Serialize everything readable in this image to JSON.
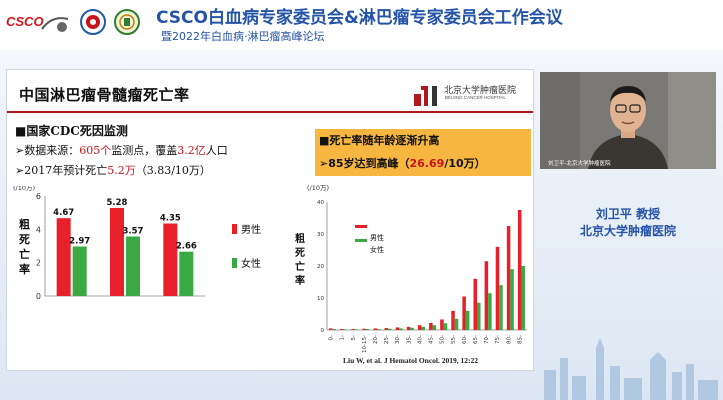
{
  "header": {
    "logo_text": "CSCO",
    "title": "CSCO白血病专家委员会&淋巴瘤专家委员会工作会议",
    "subtitle": "暨2022年白血病·淋巴瘤高峰论坛"
  },
  "slide": {
    "title": "中国淋巴瘤骨髓瘤死亡率",
    "hospital_name": "北京大学肿瘤医院",
    "hospital_name_en": "BEIJING CANCER HOSPITAL",
    "left": {
      "heading": "■国家CDC死因监测",
      "line1_pre": "➢数据来源：",
      "line1_red1": "605个",
      "line1_mid": "监测点，覆盖",
      "line1_red2": "3.2亿",
      "line1_post": "人口",
      "line2_pre": "➢2017年预计死亡",
      "line2_red": "5.2万",
      "line2_post": "（3.83/10万）"
    },
    "right": {
      "heading": "■死亡率随年龄逐渐升高",
      "line_pre": "➢85岁达到高峰（",
      "line_red": "26.69",
      "line_post": "/10万）"
    },
    "citation": "Liu W, et al. J Hematol Oncol. 2019, 12:22"
  },
  "colors": {
    "male": "#e8202a",
    "female": "#3aa843",
    "title_blue": "#2453a9",
    "accent_red": "#b1181e",
    "box_orange": "#f7b640"
  },
  "chart_data": [
    {
      "type": "bar",
      "unit_label": "(/10万)",
      "ylabel": "粗死亡率",
      "ylim": [
        0,
        6
      ],
      "yticks": [
        "0",
        "2",
        "4",
        "6"
      ],
      "categories": [
        "合计",
        "城市",
        "农村"
      ],
      "series": [
        {
          "name": "男性",
          "values": [
            4.67,
            5.28,
            4.35
          ]
        },
        {
          "name": "女性",
          "values": [
            2.97,
            3.57,
            2.66
          ]
        }
      ],
      "data_labels": [
        [
          "4.67",
          "5.28",
          "4.35"
        ],
        [
          "2.97",
          "3.57",
          "2.66"
        ]
      ],
      "legend": "right"
    },
    {
      "type": "bar",
      "unit_label": "(/10万)",
      "ylabel": "粗死亡率",
      "ylim": [
        0,
        40
      ],
      "yticks": [
        "0",
        "10",
        "20",
        "30",
        "40"
      ],
      "categories": [
        "0-",
        "1-",
        "5-",
        "10-15-",
        "20-",
        "25-",
        "30-",
        "35-",
        "40-",
        "45-",
        "50-",
        "55-",
        "60-",
        "65-",
        "70-",
        "75-",
        "80-",
        "85-"
      ],
      "series": [
        {
          "name": "男性",
          "values": [
            0.5,
            0.3,
            0.3,
            0.4,
            0.5,
            0.6,
            0.8,
            1.0,
            1.5,
            2.2,
            3.3,
            6.0,
            10.5,
            16.0,
            21.5,
            26.0,
            32.5,
            37.5
          ]
        },
        {
          "name": "女性",
          "values": [
            0.3,
            0.2,
            0.2,
            0.3,
            0.3,
            0.4,
            0.5,
            0.7,
            1.0,
            1.5,
            2.1,
            3.5,
            6.0,
            8.5,
            11.5,
            14.0,
            19.0,
            20.0
          ]
        }
      ],
      "legend": "top-left"
    }
  ],
  "video": {
    "label": "刘卫平-北京大学肿瘤医院"
  },
  "speaker": {
    "name": "刘卫平   教授",
    "organization": "北京大学肿瘤医院"
  }
}
